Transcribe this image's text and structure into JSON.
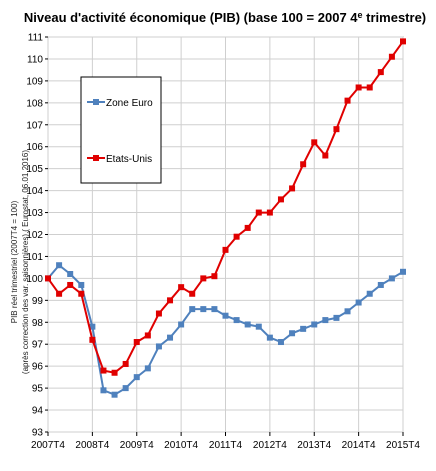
{
  "chart_data": {
    "type": "line",
    "title": "Niveau d'activité économique (PIB)  (base 100 = 2007 4",
    "title_sup": "e",
    "title_end": " trimestre)",
    "ylabel_line1": "PIB réel trimestriel (2007T4 = 100)",
    "ylabel_line2": "(après correction des var. saisonnières)  ( Eurostat, 06.01.2016)",
    "ylim": [
      93,
      111
    ],
    "yticks": [
      "93",
      "94",
      "95",
      "96",
      "97",
      "98",
      "99",
      "100",
      "101",
      "102",
      "103",
      "104",
      "105",
      "106",
      "107",
      "108",
      "109",
      "110",
      "111"
    ],
    "xtick_labels": [
      "2007T4",
      "2008T4",
      "2009T4",
      "2010T4",
      "2011T4",
      "2012T4",
      "2013T4",
      "2014T4",
      "2015T4"
    ],
    "grid": true,
    "legend_position": "upper-left",
    "series": [
      {
        "name": "Zone Euro",
        "color": "#4f81bd",
        "values": [
          100.0,
          100.6,
          100.2,
          99.7,
          97.8,
          94.9,
          94.7,
          95.0,
          95.5,
          95.9,
          96.9,
          97.3,
          97.9,
          98.6,
          98.6,
          98.6,
          98.3,
          98.1,
          97.9,
          97.8,
          97.3,
          97.1,
          97.5,
          97.7,
          97.9,
          98.1,
          98.2,
          98.5,
          98.9,
          99.3,
          99.7,
          100.0,
          100.3
        ]
      },
      {
        "name": "Etats-Unis",
        "color": "#e00000",
        "values": [
          100.0,
          99.3,
          99.7,
          99.3,
          97.2,
          95.8,
          95.7,
          96.1,
          97.1,
          97.4,
          98.4,
          99.0,
          99.6,
          99.3,
          100.0,
          100.1,
          101.3,
          101.9,
          102.3,
          103.0,
          103.0,
          103.6,
          104.1,
          105.2,
          106.2,
          105.6,
          106.8,
          108.1,
          108.7,
          108.7,
          109.4,
          110.1,
          110.8
        ]
      }
    ]
  }
}
